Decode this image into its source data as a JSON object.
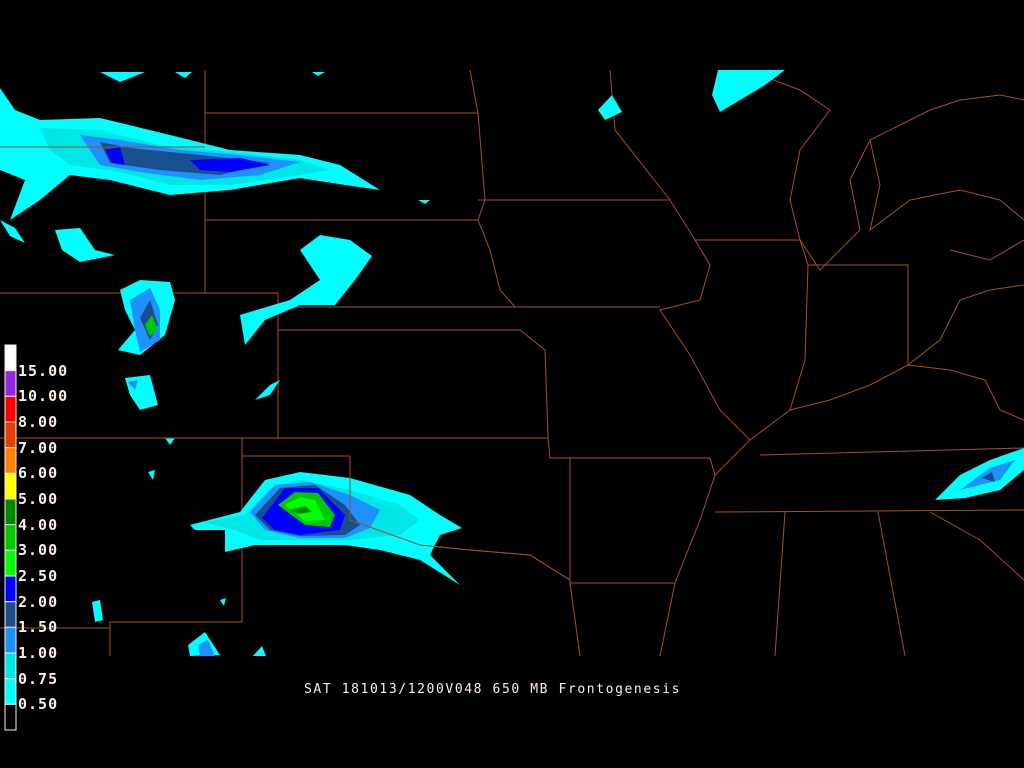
{
  "title": "SAT 181013/1200V048 650 MB Frontogenesis",
  "legend": {
    "colors": [
      "#ffffff",
      "#9128e6",
      "#ff0000",
      "#e64100",
      "#ff8000",
      "#ffff00",
      "#008800",
      "#00c800",
      "#00ff00",
      "#0000ff",
      "#184f8c",
      "#1e90ff",
      "#00e6e6",
      "#00ffff",
      "#000000"
    ],
    "labels": [
      "15.00",
      "10.00",
      "8.00",
      "7.00",
      "6.00",
      "5.00",
      "4.00",
      "3.00",
      "2.50",
      "2.00",
      "1.50",
      "1.00",
      "0.75",
      "0.50"
    ]
  },
  "colors": {
    "background": "#000000",
    "boundaries": "#a0502a",
    "text": "#ffeee6"
  }
}
